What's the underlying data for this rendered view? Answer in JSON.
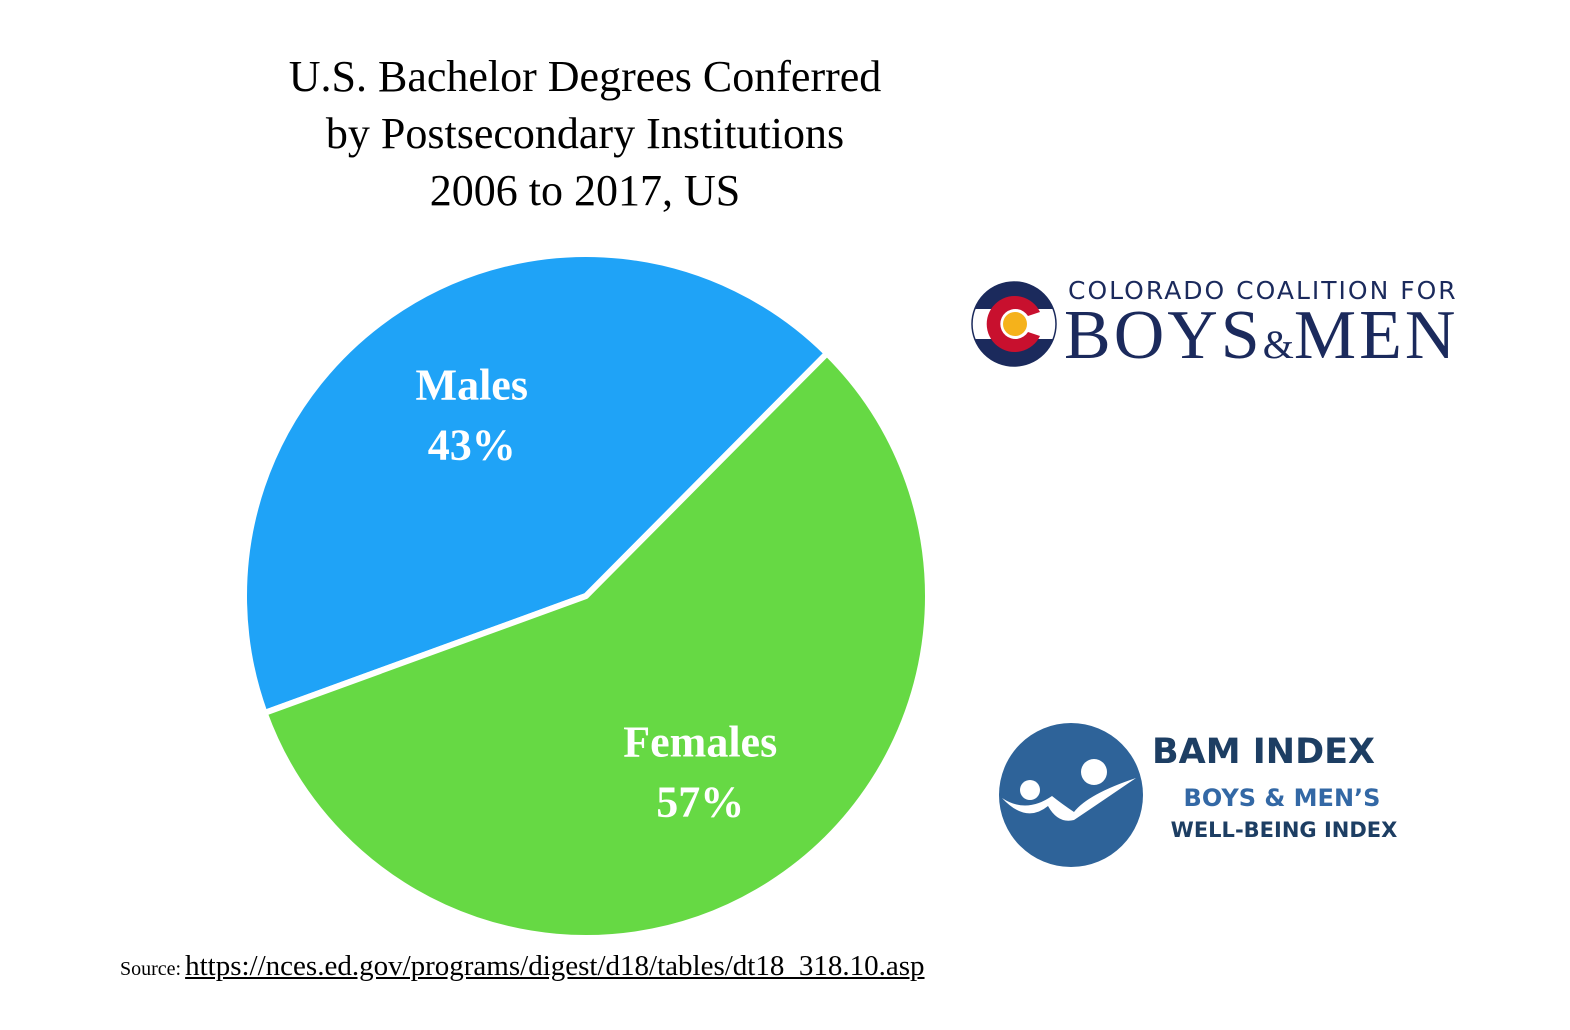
{
  "chart_data": {
    "type": "pie",
    "title_lines": [
      "U.S. Bachelor Degrees Conferred",
      "by Postsecondary Institutions",
      "2006 to 2017, US"
    ],
    "slices": [
      {
        "name": "Females",
        "value": 57,
        "value_label": "57%",
        "color": "#66d944"
      },
      {
        "name": "Males",
        "value": 43,
        "value_label": "43%",
        "color": "#1fa3f7"
      }
    ],
    "legend": "none (labels on slices)"
  },
  "logos": {
    "ccbm": {
      "top_text": "COLORADO COALITION FOR",
      "bottom_text_left": "BOYS",
      "bottom_text_amp": "&",
      "bottom_text_right": "MEN",
      "color_navy": "#1b2a5c",
      "color_red": "#c8102e",
      "color_gold": "#f5b21b"
    },
    "bam": {
      "title": "BAM INDEX",
      "line1": "BOYS & MEN’S",
      "line2": "WELL-BEING INDEX",
      "color_dark": "#1d3e63",
      "color_mid": "#3368a5",
      "color_circle": "#2e6399"
    }
  },
  "source": {
    "label": "Source:",
    "url": "https://nces.ed.gov/programs/digest/d18/tables/dt18_318.10.asp"
  }
}
